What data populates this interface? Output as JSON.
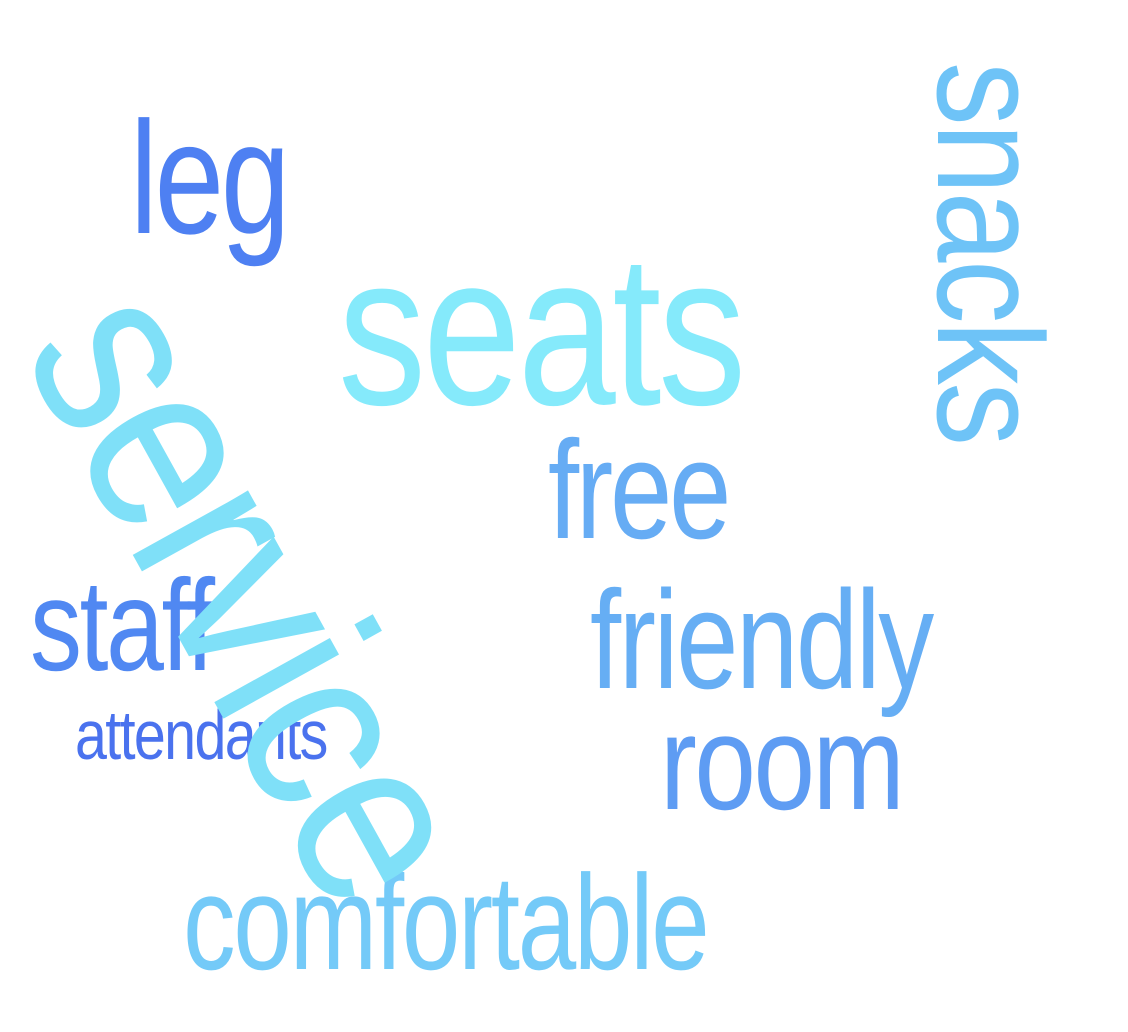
{
  "words": {
    "service": {
      "text": "service",
      "color": "#7FE0F8"
    },
    "seats": {
      "text": "seats",
      "color": "#85EAFB"
    },
    "leg": {
      "text": "leg",
      "color": "#4E80F2"
    },
    "snacks": {
      "text": "snacks",
      "color": "#6EC3F7"
    },
    "free": {
      "text": "free",
      "color": "#66ACF4"
    },
    "staff": {
      "text": "staff",
      "color": "#5088F2"
    },
    "friendly": {
      "text": "friendly",
      "color": "#66AEF4"
    },
    "attendants": {
      "text": "attendants",
      "color": "#4A72EE"
    },
    "room": {
      "text": "room",
      "color": "#5E9CF3"
    },
    "comfortable": {
      "text": "comfortable",
      "color": "#74CAF8"
    }
  }
}
